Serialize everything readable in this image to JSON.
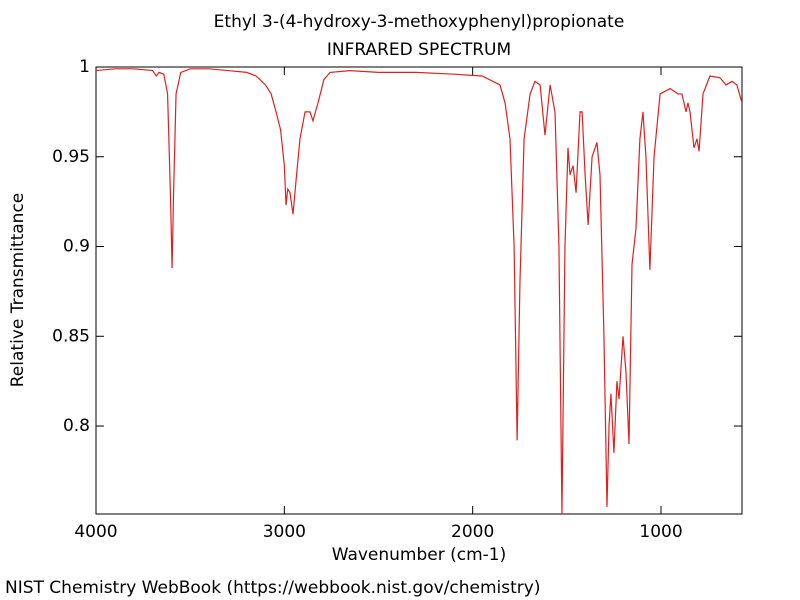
{
  "chart_data": {
    "type": "line",
    "title": "Ethyl 3-(4-hydroxy-3-methoxyphenyl)propionate",
    "subtitle": "INFRARED SPECTRUM",
    "x_label": "Wavenumber (cm-1)",
    "y_label": "Relative Transmittance",
    "color": "#e02020",
    "xlim": [
      4000,
      570
    ],
    "ylim": [
      0.751,
      1
    ],
    "xticks": [
      4000,
      3000,
      2000,
      1000
    ],
    "yticks": [
      0.8,
      0.85,
      0.9,
      0.95,
      1
    ],
    "x": [
      4000,
      3900,
      3800,
      3700,
      3680,
      3665,
      3640,
      3620,
      3605,
      3596,
      3588,
      3575,
      3550,
      3500,
      3400,
      3300,
      3200,
      3150,
      3100,
      3070,
      3044,
      3020,
      3000,
      2991,
      2982,
      2970,
      2954,
      2935,
      2917,
      2890,
      2864,
      2848,
      2835,
      2821,
      2790,
      2757,
      2651,
      2500,
      2300,
      2100,
      1950,
      1855,
      1828,
      1802,
      1780,
      1764,
      1749,
      1727,
      1695,
      1669,
      1642,
      1616,
      1589,
      1563,
      1542,
      1526,
      1510,
      1494,
      1483,
      1467,
      1451,
      1430,
      1419,
      1403,
      1387,
      1366,
      1340,
      1324,
      1303,
      1287,
      1276,
      1266,
      1250,
      1234,
      1223,
      1202,
      1186,
      1170,
      1154,
      1133,
      1112,
      1096,
      1080,
      1059,
      1037,
      1005,
      952,
      910,
      889,
      867,
      857,
      846,
      825,
      809,
      798,
      777,
      740,
      687,
      655,
      623,
      597,
      570
    ],
    "values": [
      0.998,
      0.999,
      0.999,
      0.998,
      0.995,
      0.997,
      0.996,
      0.985,
      0.93,
      0.888,
      0.93,
      0.985,
      0.997,
      0.999,
      0.999,
      0.998,
      0.997,
      0.995,
      0.99,
      0.985,
      0.975,
      0.965,
      0.945,
      0.923,
      0.932,
      0.93,
      0.918,
      0.94,
      0.96,
      0.975,
      0.975,
      0.97,
      0.975,
      0.98,
      0.993,
      0.997,
      0.998,
      0.997,
      0.997,
      0.996,
      0.995,
      0.99,
      0.98,
      0.96,
      0.9,
      0.792,
      0.88,
      0.96,
      0.985,
      0.992,
      0.99,
      0.962,
      0.99,
      0.975,
      0.9,
      0.751,
      0.9,
      0.955,
      0.94,
      0.945,
      0.93,
      0.975,
      0.975,
      0.94,
      0.912,
      0.95,
      0.958,
      0.94,
      0.85,
      0.755,
      0.8,
      0.818,
      0.785,
      0.825,
      0.815,
      0.85,
      0.83,
      0.79,
      0.89,
      0.91,
      0.96,
      0.975,
      0.95,
      0.887,
      0.95,
      0.985,
      0.988,
      0.985,
      0.985,
      0.975,
      0.98,
      0.975,
      0.955,
      0.96,
      0.953,
      0.985,
      0.995,
      0.994,
      0.99,
      0.992,
      0.99,
      0.98
    ]
  },
  "footer": "NIST Chemistry WebBook (https://webbook.nist.gov/chemistry)"
}
